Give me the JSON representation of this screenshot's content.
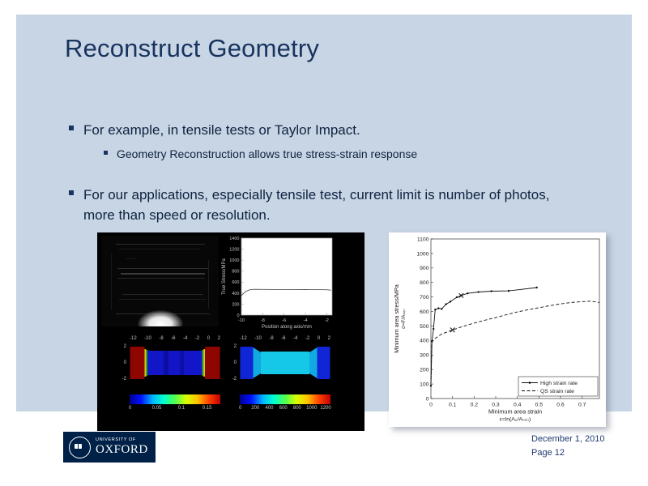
{
  "slide": {
    "title": "Reconstruct Geometry",
    "bullets": [
      {
        "text": "For example, in tensile tests or Taylor Impact.",
        "sub": [
          "Geometry Reconstruction allows true stress-strain response"
        ]
      },
      {
        "text": "For our applications, especially tensile test, current limit is number of photos, more than speed or resolution.",
        "sub": []
      }
    ]
  },
  "footer": {
    "logo_line1": "UNIVERSITY OF",
    "logo_line2": "OXFORD",
    "date": "December 1, 2010",
    "page": "Page 12"
  },
  "colors": {
    "slide_bg": "#c8d5e4",
    "title_text": "#17335f",
    "body_text": "#0e2340",
    "oxford_navy": "#002147",
    "footer_text": "#1f3a70"
  },
  "chart_data": [
    {
      "id": "stress-strain-comparison",
      "type": "line",
      "title": "",
      "xlabel": "Minimum area strain",
      "xlabel_sub": "ε=ln(A₀/Aₘᵢₙ)",
      "ylabel": "Minimum area stress/MPa",
      "ylabel_sub": "σ=F/Aₘᵢₙ",
      "xlim": [
        0,
        0.78
      ],
      "ylim": [
        0,
        1100
      ],
      "xticks": [
        0,
        0.1,
        0.2,
        0.3,
        0.4,
        0.5,
        0.6,
        0.7
      ],
      "yticks": [
        0,
        100,
        200,
        300,
        400,
        500,
        600,
        700,
        800,
        900,
        1000,
        1100
      ],
      "grid": false,
      "legend": true,
      "legend_position": "bottom-right",
      "series": [
        {
          "name": "High strain rate",
          "style": "solid",
          "marker": "dot",
          "points": [
            [
              0,
              88
            ],
            [
              0.005,
              395
            ],
            [
              0.012,
              480
            ],
            [
              0.02,
              613
            ],
            [
              0.035,
              622
            ],
            [
              0.05,
              618
            ],
            [
              0.07,
              650
            ],
            [
              0.09,
              668
            ],
            [
              0.12,
              698
            ],
            [
              0.14,
              710
            ],
            [
              0.17,
              725
            ],
            [
              0.22,
              734
            ],
            [
              0.28,
              740
            ],
            [
              0.36,
              742
            ],
            [
              0.49,
              765
            ]
          ]
        },
        {
          "name": "QS strain rate",
          "style": "dashed",
          "marker": "none",
          "points": [
            [
              0,
              95
            ],
            [
              0.004,
              390
            ],
            [
              0.02,
              415
            ],
            [
              0.05,
              445
            ],
            [
              0.1,
              473
            ],
            [
              0.15,
              498
            ],
            [
              0.2,
              520
            ],
            [
              0.25,
              540
            ],
            [
              0.3,
              558
            ],
            [
              0.35,
              578
            ],
            [
              0.4,
              597
            ],
            [
              0.45,
              612
            ],
            [
              0.5,
              626
            ],
            [
              0.55,
              640
            ],
            [
              0.6,
              652
            ],
            [
              0.65,
              662
            ],
            [
              0.7,
              668
            ],
            [
              0.74,
              671
            ],
            [
              0.78,
              662
            ]
          ]
        }
      ],
      "annotations": [
        {
          "type": "x-marker",
          "at": [
            0.14,
            710
          ]
        },
        {
          "type": "x-marker",
          "at": [
            0.1,
            473
          ]
        }
      ]
    },
    {
      "id": "true-stress-profile",
      "type": "line",
      "xlabel": "Position along axis/mm",
      "ylabel": "True Stress/MPa",
      "xlim": [
        -10,
        -1.5
      ],
      "ylim": [
        0,
        1400
      ],
      "xticks": [
        -10,
        -8,
        -6,
        -4,
        -2
      ],
      "yticks": [
        0,
        200,
        400,
        600,
        800,
        1000,
        1200,
        1400
      ],
      "grid": false,
      "legend": false,
      "series": [
        {
          "name": "true stress along axis",
          "style": "solid",
          "marker": "none",
          "points": [
            [
              -10,
              355
            ],
            [
              -9.6,
              430
            ],
            [
              -9.2,
              462
            ],
            [
              -8.8,
              468
            ],
            [
              -8,
              467
            ],
            [
              -7,
              466
            ],
            [
              -6,
              465
            ],
            [
              -5,
              465
            ],
            [
              -4,
              464
            ],
            [
              -3,
              463
            ],
            [
              -2,
              461
            ],
            [
              -1.6,
              452
            ]
          ]
        }
      ]
    },
    {
      "id": "strain-field-map",
      "type": "heatmap",
      "description": "strain field on tensile specimen",
      "xticks": [
        "-12",
        "-10",
        "-8",
        "-6",
        "-4",
        "-2",
        "0",
        "2"
      ],
      "yticks": [
        "2",
        "0",
        "-2"
      ],
      "colorbar_ticks": [
        {
          "label": "0",
          "pos": 0
        },
        {
          "label": "0.05",
          "pos": 0.278
        },
        {
          "label": "0.1",
          "pos": 0.556
        },
        {
          "label": "0.15",
          "pos": 0.833
        }
      ]
    },
    {
      "id": "stress-field-map",
      "type": "heatmap",
      "description": "stress field on tensile specimen",
      "xticks": [
        "-12",
        "-10",
        "-8",
        "-6",
        "-4",
        "-2",
        "0",
        "2"
      ],
      "yticks": [
        "2",
        "0",
        "-2"
      ],
      "colorbar_ticks": [
        {
          "label": "0",
          "pos": 0
        },
        {
          "label": "200",
          "pos": 0.154
        },
        {
          "label": "400",
          "pos": 0.308
        },
        {
          "label": "600",
          "pos": 0.462
        },
        {
          "label": "800",
          "pos": 0.615
        },
        {
          "label": "1000",
          "pos": 0.769
        },
        {
          "label": "1200",
          "pos": 0.923
        }
      ]
    }
  ]
}
